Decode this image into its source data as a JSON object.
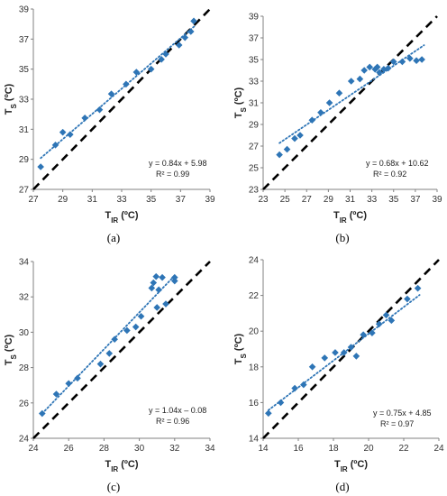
{
  "colors": {
    "marker": "#2E75B6",
    "trend": "#2E75B6",
    "identity": "#000000",
    "axis": "#808080"
  },
  "chart_data": [
    {
      "type": "scatter",
      "panel_label": "(a)",
      "xlabel": {
        "main": "T",
        "sub": "IR",
        "unit": " (ºC)"
      },
      "ylabel": {
        "main": "T",
        "sub": "S",
        "unit": " (ºC)"
      },
      "xlim": [
        27,
        39
      ],
      "ylim": [
        27,
        39
      ],
      "xticks": [
        27,
        29,
        31,
        33,
        35,
        37,
        39
      ],
      "yticks": [
        27,
        29,
        31,
        33,
        35,
        37,
        39
      ],
      "equation": "y = 0.84x + 5.98",
      "r2": "R² = 0.99",
      "trend": {
        "slope": 0.84,
        "intercept": 5.98,
        "x_range": [
          27.5,
          38.0
        ]
      },
      "identity_line": true,
      "points": [
        [
          27.5,
          28.5
        ],
        [
          28.5,
          29.95
        ],
        [
          29.0,
          30.8
        ],
        [
          29.5,
          30.65
        ],
        [
          30.5,
          31.75
        ],
        [
          31.5,
          32.3
        ],
        [
          32.3,
          33.35
        ],
        [
          33.3,
          34.0
        ],
        [
          34.0,
          34.8
        ],
        [
          35.0,
          35.0
        ],
        [
          35.7,
          35.65
        ],
        [
          36.0,
          36.0
        ],
        [
          36.9,
          36.6
        ],
        [
          37.3,
          37.1
        ],
        [
          37.7,
          37.5
        ],
        [
          37.9,
          38.2
        ]
      ]
    },
    {
      "type": "scatter",
      "panel_label": "(b)",
      "xlabel": {
        "main": "T",
        "sub": "IR",
        "unit": " (ºC)"
      },
      "ylabel": {
        "main": "T",
        "sub": "S",
        "unit": " (ºC)"
      },
      "xlim": [
        23,
        39
      ],
      "ylim": [
        23,
        39
      ],
      "xticks": [
        23,
        25,
        27,
        29,
        31,
        33,
        35,
        37,
        39
      ],
      "yticks": [
        23,
        25,
        27,
        29,
        31,
        33,
        35,
        37,
        39
      ],
      "equation": "y = 0.68x + 10.62",
      "r2": "R² = 0.92",
      "trend": {
        "slope": 0.68,
        "intercept": 10.62,
        "x_range": [
          24.5,
          37.8
        ]
      },
      "identity_line": true,
      "points": [
        [
          24.5,
          26.2
        ],
        [
          25.2,
          26.7
        ],
        [
          25.9,
          27.7
        ],
        [
          26.4,
          28.0
        ],
        [
          27.5,
          29.4
        ],
        [
          28.3,
          30.1
        ],
        [
          29.1,
          31.0
        ],
        [
          30.0,
          31.9
        ],
        [
          31.1,
          33.0
        ],
        [
          31.9,
          33.2
        ],
        [
          32.3,
          34.0
        ],
        [
          32.8,
          34.3
        ],
        [
          33.3,
          34.1
        ],
        [
          33.5,
          34.3
        ],
        [
          33.7,
          33.8
        ],
        [
          34.1,
          34.1
        ],
        [
          34.5,
          34.2
        ],
        [
          35.0,
          34.8
        ],
        [
          35.8,
          34.8
        ],
        [
          36.5,
          35.1
        ],
        [
          37.1,
          34.9
        ],
        [
          37.6,
          35.0
        ]
      ]
    },
    {
      "type": "scatter",
      "panel_label": "(c)",
      "xlabel": {
        "main": "T",
        "sub": "IR",
        "unit": " (ºC)"
      },
      "ylabel": {
        "main": "T",
        "sub": "S",
        "unit": " (ºC)"
      },
      "xlim": [
        24,
        34
      ],
      "ylim": [
        24,
        34
      ],
      "xticks": [
        24,
        26,
        28,
        30,
        32,
        34
      ],
      "yticks": [
        24,
        26,
        28,
        30,
        32,
        34
      ],
      "equation": "y = 1.04x – 0.08",
      "r2": "R² = 0.96",
      "trend": {
        "slope": 1.04,
        "intercept": -0.08,
        "x_range": [
          24.5,
          32.0
        ]
      },
      "identity_line": true,
      "points": [
        [
          24.5,
          25.4
        ],
        [
          25.3,
          26.5
        ],
        [
          26.0,
          27.1
        ],
        [
          26.5,
          27.4
        ],
        [
          27.8,
          28.2
        ],
        [
          28.3,
          28.8
        ],
        [
          28.6,
          29.6
        ],
        [
          29.3,
          30.1
        ],
        [
          29.8,
          30.3
        ],
        [
          30.1,
          30.9
        ],
        [
          30.7,
          32.5
        ],
        [
          30.8,
          32.8
        ],
        [
          30.95,
          33.15
        ],
        [
          31.1,
          32.4
        ],
        [
          31.3,
          33.1
        ],
        [
          31.0,
          31.4
        ],
        [
          31.5,
          31.6
        ],
        [
          32.0,
          33.1
        ],
        [
          32.0,
          32.9
        ]
      ]
    },
    {
      "type": "scatter",
      "panel_label": "(d)",
      "xlabel": {
        "main": "T",
        "sub": "IR",
        "unit": " (ºC)"
      },
      "ylabel": {
        "main": "T",
        "sub": "S",
        "unit": " (ºC)"
      },
      "xlim": [
        14,
        24
      ],
      "ylim": [
        14,
        24
      ],
      "xticks": [
        14,
        16,
        18,
        20,
        22,
        24
      ],
      "yticks": [
        14,
        16,
        18,
        20,
        22,
        24
      ],
      "equation": "y = 0.75x + 4.85",
      "r2": "R² = 0.97",
      "trend": {
        "slope": 0.75,
        "intercept": 4.85,
        "x_range": [
          14.3,
          22.9
        ]
      },
      "identity_line": true,
      "points": [
        [
          14.3,
          15.4
        ],
        [
          15.0,
          16.0
        ],
        [
          15.8,
          16.8
        ],
        [
          16.3,
          17.0
        ],
        [
          16.8,
          18.0
        ],
        [
          17.5,
          18.5
        ],
        [
          18.1,
          18.8
        ],
        [
          18.6,
          18.8
        ],
        [
          19.0,
          19.1
        ],
        [
          19.3,
          18.6
        ],
        [
          19.7,
          19.8
        ],
        [
          20.2,
          19.9
        ],
        [
          20.6,
          20.4
        ],
        [
          21.0,
          20.9
        ],
        [
          21.3,
          20.6
        ],
        [
          22.2,
          21.8
        ],
        [
          22.8,
          22.4
        ]
      ]
    }
  ]
}
